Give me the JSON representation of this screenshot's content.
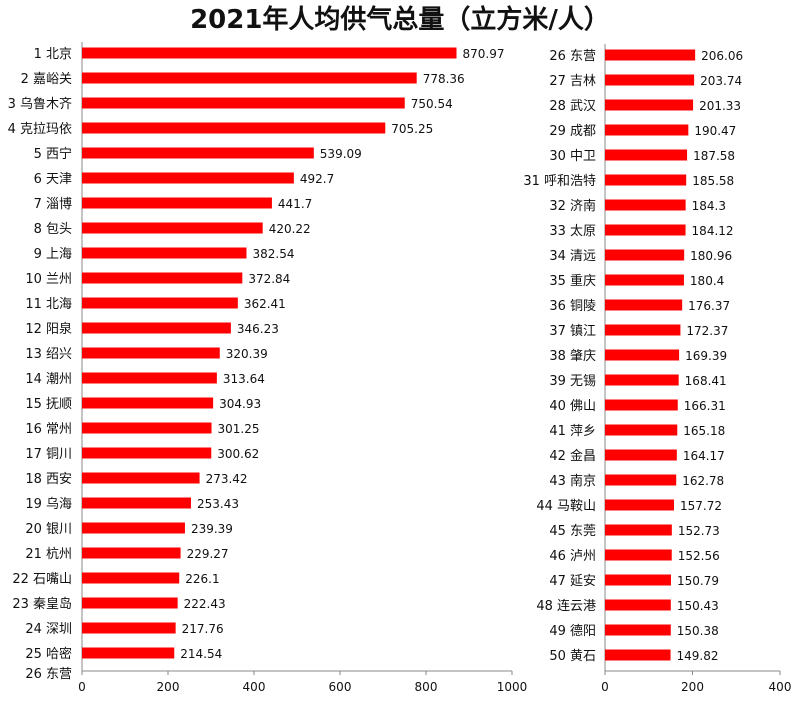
{
  "title": "2021年人均供气总量（立方米/人）",
  "chart_data": [
    {
      "type": "bar",
      "orientation": "horizontal",
      "categories": [
        "1 北京",
        "2 嘉峪关",
        "3 乌鲁木齐",
        "4 克拉玛依",
        "5 西宁",
        "6 天津",
        "7 淄博",
        "8 包头",
        "9 上海",
        "10 兰州",
        "11 北海",
        "12 阳泉",
        "13 绍兴",
        "14 潮州",
        "15 抚顺",
        "16 常州",
        "17 铜川",
        "18 西安",
        "19 乌海",
        "20 银川",
        "21 杭州",
        "22 石嘴山",
        "23 秦皇岛",
        "24 深圳",
        "25 哈密"
      ],
      "values": [
        870.97,
        778.36,
        750.54,
        705.25,
        539.09,
        492.7,
        441.7,
        420.22,
        382.54,
        372.84,
        362.41,
        346.23,
        320.39,
        313.64,
        304.93,
        301.25,
        300.62,
        273.42,
        253.43,
        239.39,
        229.27,
        226.1,
        222.43,
        217.76,
        214.54
      ],
      "value_labels": [
        "870.97",
        "778.36",
        "750.54",
        "705.25",
        "539.09",
        "492.7",
        "441.7",
        "420.22",
        "382.54",
        "372.84",
        "362.41",
        "346.23",
        "320.39",
        "313.64",
        "304.93",
        "301.25",
        "300.62",
        "273.42",
        "253.43",
        "239.39",
        "229.27",
        "226.1",
        "222.43",
        "217.76",
        "214.54"
      ],
      "extra_label": "26 东营",
      "xlim": [
        0,
        1000
      ],
      "xticks": [
        "0",
        "200",
        "400",
        "600",
        "800",
        "1000"
      ],
      "color": "#ff0000",
      "grid": false
    },
    {
      "type": "bar",
      "orientation": "horizontal",
      "categories": [
        "26 东营",
        "27 吉林",
        "28 武汉",
        "29 成都",
        "30 中卫",
        "31 呼和浩特",
        "32 济南",
        "33 太原",
        "34 清远",
        "35 重庆",
        "36 铜陵",
        "37 镇江",
        "38 肇庆",
        "39 无锡",
        "40 佛山",
        "41 萍乡",
        "42 金昌",
        "43 南京",
        "44 马鞍山",
        "45 东莞",
        "46 泸州",
        "47 延安",
        "48 连云港",
        "49 德阳",
        "50 黄石"
      ],
      "values": [
        206.06,
        203.74,
        201.33,
        190.47,
        187.58,
        185.58,
        184.3,
        184.12,
        180.96,
        180.4,
        176.37,
        172.37,
        169.39,
        168.41,
        166.31,
        165.18,
        164.17,
        162.78,
        157.72,
        152.73,
        152.56,
        150.79,
        150.43,
        150.38,
        149.82
      ],
      "value_labels": [
        "206.06",
        "203.74",
        "201.33",
        "190.47",
        "187.58",
        "185.58",
        "184.3",
        "184.12",
        "180.96",
        "180.4",
        "176.37",
        "172.37",
        "169.39",
        "168.41",
        "166.31",
        "165.18",
        "164.17",
        "162.78",
        "157.72",
        "152.73",
        "152.56",
        "150.79",
        "150.43",
        "150.38",
        "149.82"
      ],
      "xticks": [
        "0",
        "200",
        "400"
      ],
      "color": "#ff0000",
      "grid": false
    }
  ]
}
